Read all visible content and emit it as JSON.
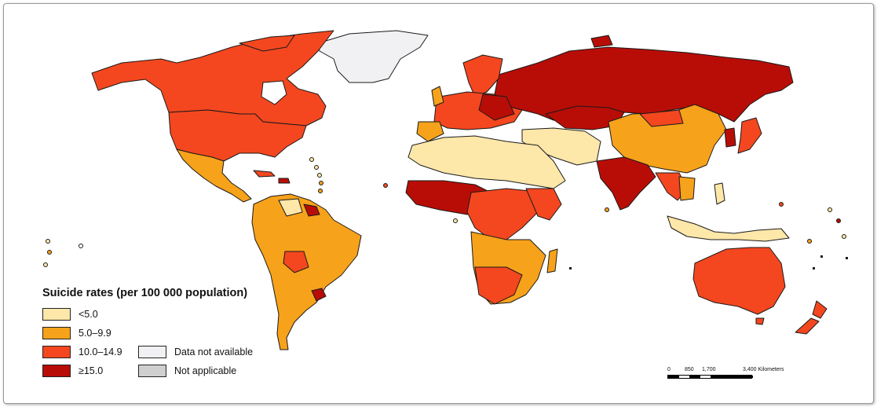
{
  "legend": {
    "title": "Suicide rates (per 100 000 population)",
    "items": [
      {
        "label": "<5.0",
        "color": "#fde7a9"
      },
      {
        "label": "5.0–9.9",
        "color": "#f7a21b"
      },
      {
        "label": "10.0–14.9",
        "color": "#f4471f"
      },
      {
        "label": "≥15.0",
        "color": "#b80d07"
      },
      {
        "label": "Data not available",
        "color": "#f1f1f3"
      },
      {
        "label": "Not applicable",
        "color": "#cfcfcf"
      }
    ]
  },
  "scale_bar": {
    "ticks": [
      "0",
      "850",
      "1,700",
      "3,400 Kilometers"
    ]
  }
}
